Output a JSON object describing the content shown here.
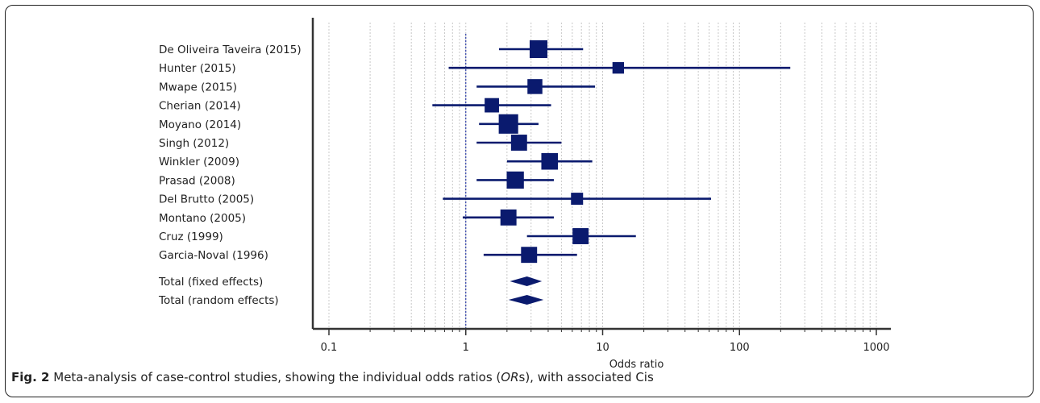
{
  "chart_data": {
    "type": "forest",
    "xlabel": "Odds ratio",
    "xscale": "log",
    "xlim": [
      0.1,
      1000
    ],
    "x_ticks": [
      "0.1",
      "1",
      "10",
      "100",
      "1000"
    ],
    "x_tick_values": [
      0.1,
      1,
      10,
      100,
      1000
    ],
    "reference_line": 1,
    "grid": true,
    "marker_color": "#0a1a6e",
    "studies": [
      {
        "label": "De Oliveira Taveira (2015)",
        "or": 3.4,
        "ci_low": 1.75,
        "ci_high": 7.2,
        "weight": 1.0
      },
      {
        "label": "Hunter (2015)",
        "or": 13.0,
        "ci_low": 0.75,
        "ci_high": 235,
        "weight": 0.45
      },
      {
        "label": "Mwape (2015)",
        "or": 3.2,
        "ci_low": 1.2,
        "ci_high": 8.8,
        "weight": 0.75
      },
      {
        "label": "Cherian (2014)",
        "or": 1.55,
        "ci_low": 0.57,
        "ci_high": 4.2,
        "weight": 0.7
      },
      {
        "label": "Moyano (2014)",
        "or": 2.05,
        "ci_low": 1.25,
        "ci_high": 3.4,
        "weight": 1.15
      },
      {
        "label": "Singh (2012)",
        "or": 2.45,
        "ci_low": 1.2,
        "ci_high": 5.0,
        "weight": 0.85
      },
      {
        "label": "Winkler (2009)",
        "or": 4.1,
        "ci_low": 2.0,
        "ci_high": 8.4,
        "weight": 0.9
      },
      {
        "label": "Prasad (2008)",
        "or": 2.3,
        "ci_low": 1.2,
        "ci_high": 4.4,
        "weight": 0.95
      },
      {
        "label": "Del Brutto (2005)",
        "or": 6.5,
        "ci_low": 0.68,
        "ci_high": 62,
        "weight": 0.5
      },
      {
        "label": "Montano (2005)",
        "or": 2.05,
        "ci_low": 0.95,
        "ci_high": 4.4,
        "weight": 0.85
      },
      {
        "label": "Cruz (1999)",
        "or": 6.9,
        "ci_low": 2.8,
        "ci_high": 17.5,
        "weight": 0.85
      },
      {
        "label": "Garcia-Noval (1996)",
        "or": 2.9,
        "ci_low": 1.35,
        "ci_high": 6.5,
        "weight": 0.85
      }
    ],
    "pooled": [
      {
        "label": "Total (fixed effects)",
        "or": 2.8,
        "ci_low": 2.1,
        "ci_high": 3.6
      },
      {
        "label": "Total (random effects)",
        "or": 2.8,
        "ci_low": 2.05,
        "ci_high": 3.7
      }
    ]
  },
  "caption": {
    "fig": "Fig. 2",
    "text_before": " Meta-analysis of case-control studies, showing the individual odds ratios (",
    "italic": "OR",
    "text_after": "s), with associated Cis"
  }
}
